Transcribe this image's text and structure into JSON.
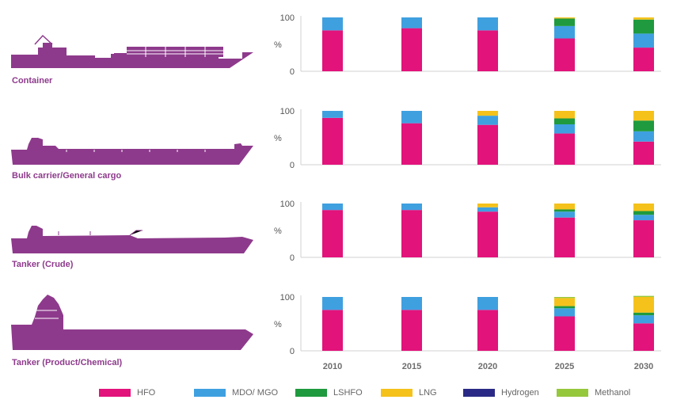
{
  "colors": {
    "HFO": "#e2137b",
    "MDO/ MGO": "#3fa0e0",
    "LSHFO": "#1f9a3e",
    "LNG": "#f5c21b",
    "Hydrogen": "#2a2a86",
    "Methanol": "#96c83c",
    "ship": "#8e3a8c"
  },
  "legend": [
    {
      "name": "HFO",
      "color": "#e2137b"
    },
    {
      "name": "MDO/ MGO",
      "color": "#3fa0e0"
    },
    {
      "name": "LSHFO",
      "color": "#1f9a3e"
    },
    {
      "name": "LNG",
      "color": "#f5c21b"
    },
    {
      "name": "Hydrogen",
      "color": "#2a2a86"
    },
    {
      "name": "Methanol",
      "color": "#96c83c"
    }
  ],
  "x_labels": [
    "2010",
    "2015",
    "2020",
    "2025",
    "2030"
  ],
  "chart_data": [
    {
      "type": "bar",
      "stacked": true,
      "title": "Container",
      "categories": [
        "2010",
        "2015",
        "2020",
        "2025",
        "2030"
      ],
      "ylabel": "%",
      "ylim": [
        0,
        100
      ],
      "yticks": [
        0,
        100
      ],
      "series": [
        {
          "name": "HFO",
          "values": [
            76,
            80,
            76,
            61,
            44
          ]
        },
        {
          "name": "MDO/ MGO",
          "values": [
            24,
            20,
            24,
            23,
            26
          ]
        },
        {
          "name": "LSHFO",
          "values": [
            0,
            0,
            0,
            14,
            26
          ]
        },
        {
          "name": "LNG",
          "values": [
            0,
            0,
            0,
            2,
            4
          ]
        },
        {
          "name": "Hydrogen",
          "values": [
            0,
            0,
            0,
            0,
            0
          ]
        },
        {
          "name": "Methanol",
          "values": [
            0,
            0,
            0,
            0,
            0
          ]
        }
      ]
    },
    {
      "type": "bar",
      "stacked": true,
      "title": "Bulk carrier/General cargo",
      "categories": [
        "2010",
        "2015",
        "2020",
        "2025",
        "2030"
      ],
      "ylabel": "%",
      "ylim": [
        0,
        100
      ],
      "yticks": [
        0,
        100
      ],
      "series": [
        {
          "name": "HFO",
          "values": [
            87,
            77,
            74,
            58,
            43
          ]
        },
        {
          "name": "MDO/ MGO",
          "values": [
            13,
            23,
            17,
            17,
            19
          ]
        },
        {
          "name": "LSHFO",
          "values": [
            0,
            0,
            0,
            11,
            20
          ]
        },
        {
          "name": "LNG",
          "values": [
            0,
            0,
            9,
            14,
            18
          ]
        },
        {
          "name": "Hydrogen",
          "values": [
            0,
            0,
            0,
            0,
            0
          ]
        },
        {
          "name": "Methanol",
          "values": [
            0,
            0,
            0,
            0,
            0
          ]
        }
      ]
    },
    {
      "type": "bar",
      "stacked": true,
      "title": "Tanker (Crude)",
      "categories": [
        "2010",
        "2015",
        "2020",
        "2025",
        "2030"
      ],
      "ylabel": "%",
      "ylim": [
        0,
        100
      ],
      "yticks": [
        0,
        100
      ],
      "series": [
        {
          "name": "HFO",
          "values": [
            88,
            88,
            85,
            74,
            69
          ]
        },
        {
          "name": "MDO/ MGO",
          "values": [
            12,
            12,
            8,
            11,
            10
          ]
        },
        {
          "name": "LSHFO",
          "values": [
            0,
            0,
            0,
            4,
            7
          ]
        },
        {
          "name": "LNG",
          "values": [
            0,
            0,
            7,
            11,
            14
          ]
        },
        {
          "name": "Hydrogen",
          "values": [
            0,
            0,
            0,
            0,
            0
          ]
        },
        {
          "name": "Methanol",
          "values": [
            0,
            0,
            0,
            0,
            0
          ]
        }
      ]
    },
    {
      "type": "bar",
      "stacked": true,
      "title": "Tanker (Product/Chemical)",
      "categories": [
        "2010",
        "2015",
        "2020",
        "2025",
        "2030"
      ],
      "ylabel": "%",
      "ylim": [
        0,
        100
      ],
      "yticks": [
        0,
        100
      ],
      "series": [
        {
          "name": "HFO",
          "values": [
            76,
            76,
            76,
            64,
            51
          ]
        },
        {
          "name": "MDO/ MGO",
          "values": [
            24,
            24,
            24,
            15,
            15
          ]
        },
        {
          "name": "LSHFO",
          "values": [
            0,
            0,
            0,
            4,
            5
          ]
        },
        {
          "name": "LNG",
          "values": [
            0,
            0,
            0,
            15,
            29
          ]
        },
        {
          "name": "Hydrogen",
          "values": [
            0,
            0,
            0,
            0,
            0
          ]
        },
        {
          "name": "Methanol",
          "values": [
            0,
            0,
            0,
            2,
            2
          ]
        }
      ]
    }
  ]
}
